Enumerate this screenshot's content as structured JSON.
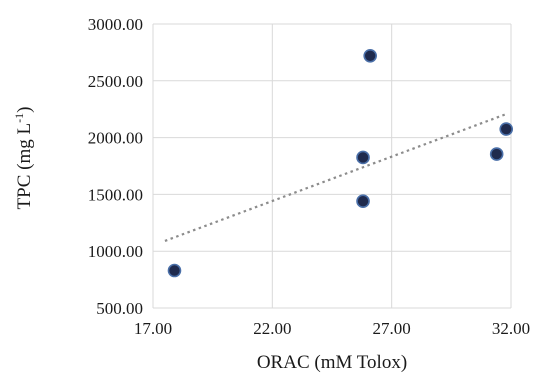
{
  "chart_data": {
    "type": "scatter",
    "title": "",
    "xlabel": "ORAC (mM Tolox)",
    "ylabel_parts": {
      "main": "TPC (mg L",
      "sup": "-1",
      "close": ")"
    },
    "xlim": [
      17,
      32
    ],
    "ylim": [
      500,
      3000
    ],
    "x_ticks": [
      17,
      22,
      27,
      32
    ],
    "y_ticks": [
      500,
      1000,
      1500,
      2000,
      2500,
      3000
    ],
    "x_tick_labels": [
      "17.00",
      "22.00",
      "27.00",
      "32.00"
    ],
    "y_tick_labels": [
      "500.00",
      "1000.00",
      "1500.00",
      "2000.00",
      "2500.00",
      "3000.00"
    ],
    "grid": true,
    "legend": "none",
    "points": [
      {
        "x": 17.9,
        "y": 830
      },
      {
        "x": 25.8,
        "y": 1440
      },
      {
        "x": 25.8,
        "y": 1825
      },
      {
        "x": 26.1,
        "y": 2720
      },
      {
        "x": 31.4,
        "y": 1855
      },
      {
        "x": 31.8,
        "y": 2075
      }
    ],
    "trendline": {
      "style": "dotted linear",
      "x_range": [
        17.5,
        31.8
      ]
    },
    "colors": {
      "marker_fill": "#1f2a4d",
      "marker_edge": "#4a6fa8",
      "trendline": "#8c8c8c",
      "grid": "#d9d9d9"
    }
  }
}
